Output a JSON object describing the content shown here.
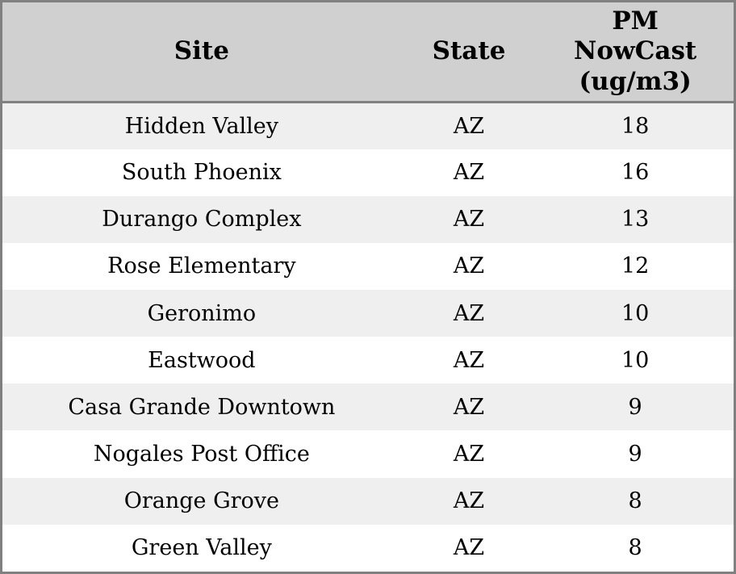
{
  "colors": {
    "outer_border": "#808080",
    "header_bg": "#d0d0d0",
    "row_stripe": "#efefef",
    "row_plain": "#ffffff",
    "text": "#000000"
  },
  "table": {
    "columns": [
      {
        "key": "site",
        "label": "Site"
      },
      {
        "key": "state",
        "label": "State"
      },
      {
        "key": "pm",
        "label": "PM\nNowCast\n(ug/m3)"
      }
    ],
    "rows": [
      {
        "site": "Hidden Valley",
        "state": "AZ",
        "pm": "18"
      },
      {
        "site": "South Phoenix",
        "state": "AZ",
        "pm": "16"
      },
      {
        "site": "Durango Complex",
        "state": "AZ",
        "pm": "13"
      },
      {
        "site": "Rose Elementary",
        "state": "AZ",
        "pm": "12"
      },
      {
        "site": "Geronimo",
        "state": "AZ",
        "pm": "10"
      },
      {
        "site": "Eastwood",
        "state": "AZ",
        "pm": "10"
      },
      {
        "site": "Casa Grande Downtown",
        "state": "AZ",
        "pm": "9"
      },
      {
        "site": "Nogales Post Office",
        "state": "AZ",
        "pm": "9"
      },
      {
        "site": "Orange Grove",
        "state": "AZ",
        "pm": "8"
      },
      {
        "site": "Green Valley",
        "state": "AZ",
        "pm": "8"
      }
    ]
  },
  "chart_data": {
    "type": "table",
    "title": "",
    "columns": [
      "Site",
      "State",
      "PM NowCast (ug/m3)"
    ],
    "rows": [
      [
        "Hidden Valley",
        "AZ",
        18
      ],
      [
        "South Phoenix",
        "AZ",
        16
      ],
      [
        "Durango Complex",
        "AZ",
        13
      ],
      [
        "Rose Elementary",
        "AZ",
        12
      ],
      [
        "Geronimo",
        "AZ",
        10
      ],
      [
        "Eastwood",
        "AZ",
        10
      ],
      [
        "Casa Grande Downtown",
        "AZ",
        9
      ],
      [
        "Nogales Post Office",
        "AZ",
        9
      ],
      [
        "Orange Grove",
        "AZ",
        8
      ],
      [
        "Green Valley",
        "AZ",
        8
      ]
    ],
    "layout": {
      "header_background": "#d0d0d0",
      "striped_rows": true,
      "stripe_color": "#efefef",
      "grid": "outer-border-and-header-rule-only",
      "text_align": "center"
    }
  }
}
